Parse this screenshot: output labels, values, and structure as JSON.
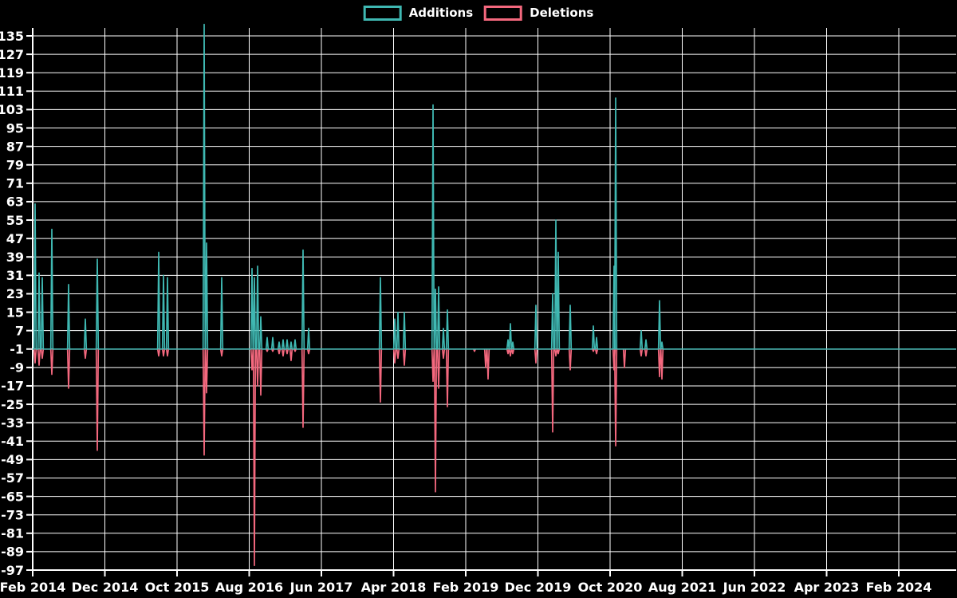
{
  "legend": {
    "items": [
      {
        "label": "Additions",
        "color": "#3FB8B2"
      },
      {
        "label": "Deletions",
        "color": "#F4687E"
      }
    ]
  },
  "chart_data": {
    "type": "line",
    "title": "",
    "background_color": "#000000",
    "grid_color": "#FFFFFF",
    "text_color": "#FFFFFF",
    "grid": true,
    "legend_position": "top-center",
    "baseline_value": -1,
    "series": [
      {
        "name": "Additions",
        "color": "#3FB8B2"
      },
      {
        "name": "Deletions",
        "color": "#F4687E"
      }
    ],
    "y_axis": {
      "min": -97,
      "max": 135,
      "tick_step": 8,
      "tick_labels": [
        "135",
        "127",
        "119",
        "111",
        "103",
        "95",
        "87",
        "79",
        "71",
        "63",
        "55",
        "47",
        "39",
        "31",
        "23",
        "15",
        "7",
        "-1",
        "-9",
        "-17",
        "-25",
        "-33",
        "-41",
        "-49",
        "-57",
        "-65",
        "-73",
        "-81",
        "-89",
        "-97"
      ]
    },
    "x_axis": {
      "months_per_tick": 10,
      "tick_labels": [
        "Feb 2014",
        "Dec 2014",
        "Oct 2015",
        "Aug 2016",
        "Jun 2017",
        "Apr 2018",
        "Feb 2019",
        "Dec 2019",
        "Oct 2020",
        "Aug 2021",
        "Jun 2022",
        "Apr 2023",
        "Feb 2024"
      ]
    },
    "events_note": "month_offset = fractional months after Feb 2014; deletions plotted below baseline; additions value 140 is clipped at plot top",
    "events": [
      {
        "month_offset": 0.33,
        "date": "2014-02-11",
        "additions": 62,
        "deletions": -7
      },
      {
        "month_offset": 0.88,
        "date": "2014-02-28",
        "additions": 32,
        "deletions": -8
      },
      {
        "month_offset": 1.33,
        "date": "2014-03-11",
        "additions": 30,
        "deletions": -5
      },
      {
        "month_offset": 2.65,
        "date": "2014-04-21",
        "additions": 51,
        "deletions": -12
      },
      {
        "month_offset": 4.97,
        "date": "2014-07-03",
        "additions": 27,
        "deletions": -18
      },
      {
        "month_offset": 7.29,
        "date": "2014-09-13",
        "additions": 12,
        "deletions": -5
      },
      {
        "month_offset": 8.95,
        "date": "2014-11-02",
        "additions": 38,
        "deletions": -45
      },
      {
        "month_offset": 17.46,
        "date": "2015-07-17",
        "additions": 41,
        "deletions": -4
      },
      {
        "month_offset": 18.12,
        "date": "2015-08-06",
        "additions": 31,
        "deletions": -4
      },
      {
        "month_offset": 18.67,
        "date": "2015-08-23",
        "additions": 30,
        "deletions": -4
      },
      {
        "month_offset": 23.76,
        "date": "2016-01-25",
        "additions": 140,
        "deletions": -47
      },
      {
        "month_offset": 24.09,
        "date": "2016-02-04",
        "additions": 45,
        "deletions": -20
      },
      {
        "month_offset": 26.19,
        "date": "2016-04-08",
        "additions": 30,
        "deletions": -4
      },
      {
        "month_offset": 30.39,
        "date": "2016-08-14",
        "additions": 34,
        "deletions": -10
      },
      {
        "month_offset": 30.72,
        "date": "2016-08-24",
        "additions": 30,
        "deletions": -95
      },
      {
        "month_offset": 31.16,
        "date": "2016-09-07",
        "additions": 35,
        "deletions": -17
      },
      {
        "month_offset": 31.6,
        "date": "2016-09-20",
        "additions": 13,
        "deletions": -21
      },
      {
        "month_offset": 32.49,
        "date": "2016-10-17",
        "additions": 4,
        "deletions": -2
      },
      {
        "month_offset": 33.26,
        "date": "2016-11-10",
        "additions": 4,
        "deletions": -2
      },
      {
        "month_offset": 34.14,
        "date": "2016-12-06",
        "additions": 2,
        "deletions": -3
      },
      {
        "month_offset": 34.7,
        "date": "2016-12-24",
        "additions": 3,
        "deletions": -4
      },
      {
        "month_offset": 35.25,
        "date": "2017-01-09",
        "additions": 3,
        "deletions": -3
      },
      {
        "month_offset": 35.8,
        "date": "2017-01-26",
        "additions": 2,
        "deletions": -6
      },
      {
        "month_offset": 36.35,
        "date": "2017-02-12",
        "additions": 3,
        "deletions": -2
      },
      {
        "month_offset": 37.46,
        "date": "2017-03-18",
        "additions": 42,
        "deletions": -35
      },
      {
        "month_offset": 38.23,
        "date": "2017-04-10",
        "additions": 8,
        "deletions": -3
      },
      {
        "month_offset": 48.18,
        "date": "2018-02-07",
        "additions": 30,
        "deletions": -24
      },
      {
        "month_offset": 50.17,
        "date": "2018-04-09",
        "additions": 12,
        "deletions": -7
      },
      {
        "month_offset": 50.61,
        "date": "2018-04-22",
        "additions": 15,
        "deletions": -5
      },
      {
        "month_offset": 51.49,
        "date": "2018-05-19",
        "additions": 15,
        "deletions": -8
      },
      {
        "month_offset": 55.47,
        "date": "2018-09-17",
        "additions": 105,
        "deletions": -15
      },
      {
        "month_offset": 55.8,
        "date": "2018-09-27",
        "additions": 25,
        "deletions": -63
      },
      {
        "month_offset": 56.24,
        "date": "2018-10-10",
        "additions": 26,
        "deletions": -18
      },
      {
        "month_offset": 56.91,
        "date": "2018-10-31",
        "additions": 8,
        "deletions": -5
      },
      {
        "month_offset": 57.46,
        "date": "2018-11-16",
        "additions": 16,
        "deletions": -26
      },
      {
        "month_offset": 61.22,
        "date": "2019-03-10",
        "additions": -1,
        "deletions": -2
      },
      {
        "month_offset": 62.76,
        "date": "2019-04-26",
        "additions": -1,
        "deletions": -9
      },
      {
        "month_offset": 63.09,
        "date": "2019-05-06",
        "additions": -1,
        "deletions": -14
      },
      {
        "month_offset": 65.86,
        "date": "2019-07-30",
        "additions": 3,
        "deletions": -3
      },
      {
        "month_offset": 66.19,
        "date": "2019-08-09",
        "additions": 10,
        "deletions": -4
      },
      {
        "month_offset": 66.52,
        "date": "2019-08-19",
        "additions": 2,
        "deletions": -3
      },
      {
        "month_offset": 69.72,
        "date": "2019-11-25",
        "additions": 18,
        "deletions": -7
      },
      {
        "month_offset": 72.04,
        "date": "2020-02-03",
        "additions": 23,
        "deletions": -37
      },
      {
        "month_offset": 72.49,
        "date": "2020-02-17",
        "additions": 55,
        "deletions": -4
      },
      {
        "month_offset": 72.82,
        "date": "2020-02-27",
        "additions": 41,
        "deletions": -3
      },
      {
        "month_offset": 74.48,
        "date": "2020-04-18",
        "additions": 18,
        "deletions": -10
      },
      {
        "month_offset": 77.68,
        "date": "2020-07-24",
        "additions": 9,
        "deletions": -2
      },
      {
        "month_offset": 78.12,
        "date": "2020-08-06",
        "additions": 4,
        "deletions": -3
      },
      {
        "month_offset": 80.55,
        "date": "2020-10-19",
        "additions": 35,
        "deletions": -10
      },
      {
        "month_offset": 80.77,
        "date": "2020-10-26",
        "additions": 108,
        "deletions": -43
      },
      {
        "month_offset": 81.99,
        "date": "2020-12-02",
        "additions": -1,
        "deletions": -9
      },
      {
        "month_offset": 84.31,
        "date": "2021-02-11",
        "additions": 7,
        "deletions": -4
      },
      {
        "month_offset": 84.97,
        "date": "2021-03-03",
        "additions": 3,
        "deletions": -4
      },
      {
        "month_offset": 86.85,
        "date": "2021-04-29",
        "additions": 20,
        "deletions": -13
      },
      {
        "month_offset": 87.18,
        "date": "2021-05-09",
        "additions": 2,
        "deletions": -14
      }
    ]
  }
}
